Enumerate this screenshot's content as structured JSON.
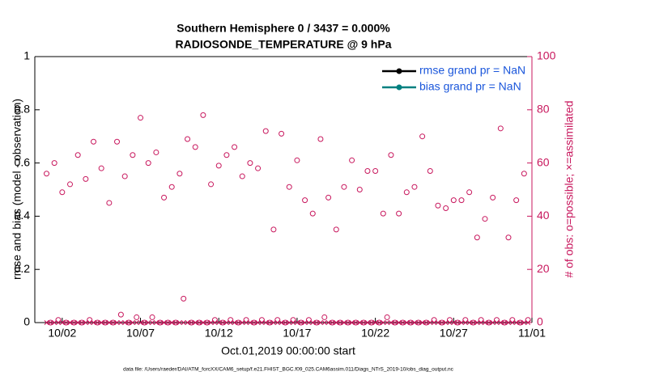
{
  "chart_data": {
    "type": "scatter",
    "title": "Southern Hemisphere 0 / 3437 = 0.000%",
    "subtitle": "RADIOSONDE_TEMPERATURE @ 9 hPa",
    "y_label": "rmse and bias (model - observation)",
    "y2_label": "# of obs: o=possible; ×=assimilated",
    "x_label": "Oct.01,2019 00:00:00 start",
    "footnote": "data file: /Users/raeder/DAI/ATM_forcXX/CAM6_setup/f.e21.FHIST_BGC.f09_025.CAM6assim.011/Diags_NTrS_2019-10/obs_diag_output.nc",
    "xlim": [
      -0.75,
      31
    ],
    "xticks": [
      {
        "value": 1,
        "label": "10/02"
      },
      {
        "value": 6,
        "label": "10/07"
      },
      {
        "value": 11,
        "label": "10/12"
      },
      {
        "value": 16,
        "label": "10/17"
      },
      {
        "value": 21,
        "label": "10/22"
      },
      {
        "value": 26,
        "label": "10/27"
      },
      {
        "value": 31,
        "label": "11/01"
      }
    ],
    "ylim": [
      0,
      1
    ],
    "yticks": [
      0,
      0.2,
      0.4,
      0.6,
      0.8,
      1
    ],
    "y2lim": [
      0,
      100
    ],
    "y2ticks": [
      0,
      20,
      40,
      60,
      80,
      100
    ],
    "y2_color": "#c8175d",
    "series": [
      {
        "name": "rmse grand pr = NaN",
        "color": "#000000"
      },
      {
        "name": "bias grand pr = NaN",
        "color": "#008080"
      }
    ],
    "legend_text_color": "#1a56db",
    "legend": "upper right",
    "x": [
      0,
      0.25,
      0.5,
      0.75,
      1,
      1.25,
      1.5,
      1.75,
      2,
      2.25,
      2.5,
      2.75,
      3,
      3.25,
      3.5,
      3.75,
      4,
      4.25,
      4.5,
      4.75,
      5,
      5.25,
      5.5,
      5.75,
      6,
      6.25,
      6.5,
      6.75,
      7,
      7.25,
      7.5,
      7.75,
      8,
      8.25,
      8.5,
      8.75,
      9,
      9.25,
      9.5,
      9.75,
      10,
      10.25,
      10.5,
      10.75,
      11,
      11.25,
      11.5,
      11.75,
      12,
      12.25,
      12.5,
      12.75,
      13,
      13.25,
      13.5,
      13.75,
      14,
      14.25,
      14.5,
      14.75,
      15,
      15.25,
      15.5,
      15.75,
      16,
      16.25,
      16.5,
      16.75,
      17,
      17.25,
      17.5,
      17.75,
      18,
      18.25,
      18.5,
      18.75,
      19,
      19.25,
      19.5,
      19.75,
      20,
      20.25,
      20.5,
      20.75,
      21,
      21.25,
      21.5,
      21.75,
      22,
      22.25,
      22.5,
      22.75,
      23,
      23.25,
      23.5,
      23.75,
      24,
      24.25,
      24.5,
      24.75,
      25,
      25.25,
      25.5,
      25.75,
      26,
      26.25,
      26.5,
      26.75,
      27,
      27.25,
      27.5,
      27.75,
      28,
      28.25,
      28.5,
      28.75,
      29,
      29.25,
      29.5,
      29.75,
      30,
      30.25,
      30.5,
      30.75
    ],
    "obs_series": [
      {
        "marker": "o",
        "color": "#c8175d",
        "axis": "y2",
        "values": [
          56,
          0,
          60,
          1,
          49,
          0,
          52,
          0,
          63,
          0,
          54,
          1,
          68,
          0,
          58,
          0,
          45,
          0,
          68,
          3,
          55,
          0,
          63,
          2,
          77,
          0,
          60,
          2,
          64,
          0,
          47,
          0,
          51,
          0,
          56,
          9,
          69,
          0,
          66,
          0,
          78,
          0,
          52,
          1,
          59,
          0,
          63,
          1,
          66,
          0,
          55,
          1,
          60,
          0,
          58,
          1,
          72,
          0,
          35,
          1,
          71,
          0,
          51,
          1,
          61,
          0,
          46,
          1,
          41,
          0,
          69,
          2,
          47,
          0,
          35,
          0,
          51,
          0,
          61,
          0,
          50,
          0,
          57,
          0,
          57,
          0,
          41,
          2,
          63,
          0,
          41,
          0,
          49,
          0,
          51,
          0,
          70,
          0,
          57,
          1,
          44,
          0,
          43,
          1,
          46,
          0,
          46,
          1,
          49,
          0,
          32,
          1,
          39,
          0,
          47,
          1,
          73,
          0,
          32,
          1,
          46,
          0,
          56,
          1
        ]
      },
      {
        "marker": "x",
        "color": "#c8175d",
        "axis": "y2",
        "values": [
          0,
          0,
          0,
          0,
          0,
          0,
          0,
          0,
          0,
          0,
          0,
          0,
          0,
          0,
          0,
          0,
          0,
          0,
          0,
          0,
          0,
          0,
          0,
          0,
          0,
          0,
          0,
          0,
          0,
          0,
          0,
          0,
          0,
          0,
          0,
          0,
          0,
          0,
          0,
          0,
          0,
          0,
          0,
          0,
          0,
          0,
          0,
          0,
          0,
          0,
          0,
          0,
          0,
          0,
          0,
          0,
          0,
          0,
          0,
          0,
          0,
          0,
          0,
          0,
          0,
          0,
          0,
          0,
          0,
          0,
          0,
          0,
          0,
          0,
          0,
          0,
          0,
          0,
          0,
          0,
          0,
          0,
          0,
          0,
          0,
          0,
          0,
          0,
          0,
          0,
          0,
          0,
          0,
          0,
          0,
          0,
          0,
          0,
          0,
          0,
          0,
          0,
          0,
          0,
          0,
          0,
          0,
          0,
          0,
          0,
          0,
          0,
          0,
          0,
          0,
          0,
          0,
          0,
          0,
          0,
          0,
          0,
          0,
          0
        ]
      }
    ]
  }
}
